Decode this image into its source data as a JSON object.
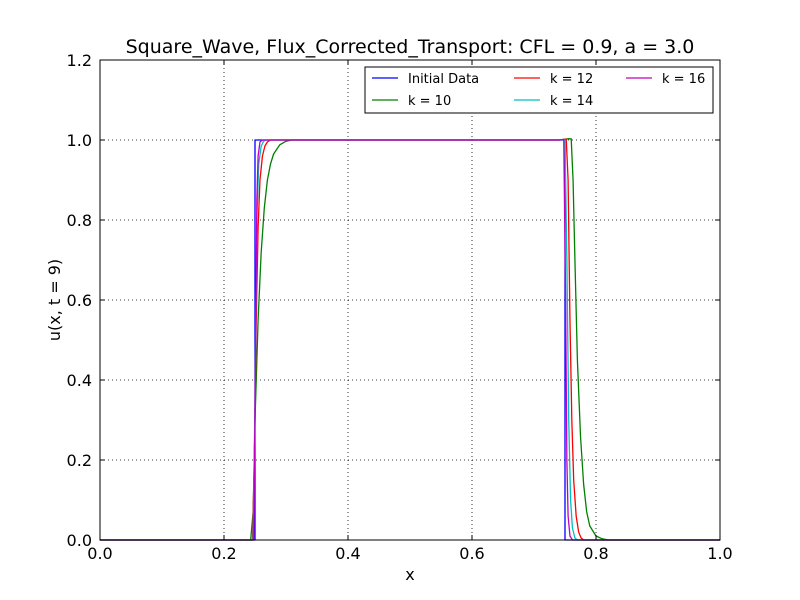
{
  "chart_data": {
    "type": "line",
    "title": "Square_Wave, Flux_Corrected_Transport: CFL = 0.9, a = 3.0",
    "xlabel": "x",
    "ylabel": "u(x, t = 9)",
    "xlim": [
      0.0,
      1.0
    ],
    "ylim": [
      0.0,
      1.2
    ],
    "xticks": [
      "0.0",
      "0.2",
      "0.4",
      "0.6",
      "0.8",
      "1.0"
    ],
    "yticks": [
      "0.0",
      "0.2",
      "0.4",
      "0.6",
      "0.8",
      "1.0",
      "1.2"
    ],
    "grid": true,
    "legend_position": "top-right",
    "series": [
      {
        "name": "Initial Data",
        "color": "#0000ff",
        "x": [
          0.0,
          0.25,
          0.25,
          0.75,
          0.75,
          1.0
        ],
        "y": [
          0.0,
          0.0,
          1.0,
          1.0,
          0.0,
          0.0
        ]
      },
      {
        "name": "k = 10",
        "color": "#008000",
        "x": [
          0.0,
          0.243,
          0.247,
          0.25,
          0.255,
          0.26,
          0.265,
          0.27,
          0.275,
          0.28,
          0.29,
          0.3,
          0.31,
          0.74,
          0.755,
          0.76,
          0.763,
          0.766,
          0.77,
          0.775,
          0.78,
          0.785,
          0.79,
          0.8,
          0.81,
          0.82,
          1.0
        ],
        "y": [
          0.0,
          0.0,
          0.07,
          0.3,
          0.55,
          0.72,
          0.83,
          0.9,
          0.94,
          0.965,
          0.988,
          0.997,
          1.0,
          1.0,
          1.003,
          1.003,
          0.9,
          0.7,
          0.45,
          0.26,
          0.14,
          0.07,
          0.035,
          0.01,
          0.003,
          0.0,
          0.0
        ]
      },
      {
        "name": "k = 12",
        "color": "#ff0000",
        "x": [
          0.0,
          0.246,
          0.249,
          0.252,
          0.255,
          0.258,
          0.262,
          0.266,
          0.27,
          0.275,
          0.28,
          0.74,
          0.752,
          0.755,
          0.758,
          0.761,
          0.764,
          0.768,
          0.772,
          0.776,
          0.78,
          1.0
        ],
        "y": [
          0.0,
          0.0,
          0.2,
          0.55,
          0.78,
          0.9,
          0.96,
          0.985,
          0.995,
          1.0,
          1.0,
          1.0,
          1.002,
          0.9,
          0.55,
          0.3,
          0.15,
          0.06,
          0.02,
          0.005,
          0.0,
          0.0
        ]
      },
      {
        "name": "k = 14",
        "color": "#00bfbf",
        "x": [
          0.0,
          0.247,
          0.25,
          0.253,
          0.256,
          0.26,
          0.264,
          0.268,
          0.74,
          0.75,
          0.753,
          0.756,
          0.759,
          0.762,
          0.766,
          0.77,
          1.0
        ],
        "y": [
          0.0,
          0.0,
          0.35,
          0.8,
          0.94,
          0.985,
          0.997,
          1.0,
          1.0,
          1.0,
          0.7,
          0.3,
          0.1,
          0.03,
          0.005,
          0.0,
          0.0
        ]
      },
      {
        "name": "k = 16",
        "color": "#bf00bf",
        "x": [
          0.0,
          0.248,
          0.251,
          0.253,
          0.255,
          0.258,
          0.262,
          0.74,
          0.748,
          0.751,
          0.753,
          0.755,
          0.758,
          0.762,
          1.0
        ],
        "y": [
          0.0,
          0.0,
          0.5,
          0.85,
          0.96,
          0.995,
          1.0,
          1.0,
          1.001,
          0.6,
          0.2,
          0.06,
          0.01,
          0.0,
          0.0
        ]
      }
    ]
  }
}
